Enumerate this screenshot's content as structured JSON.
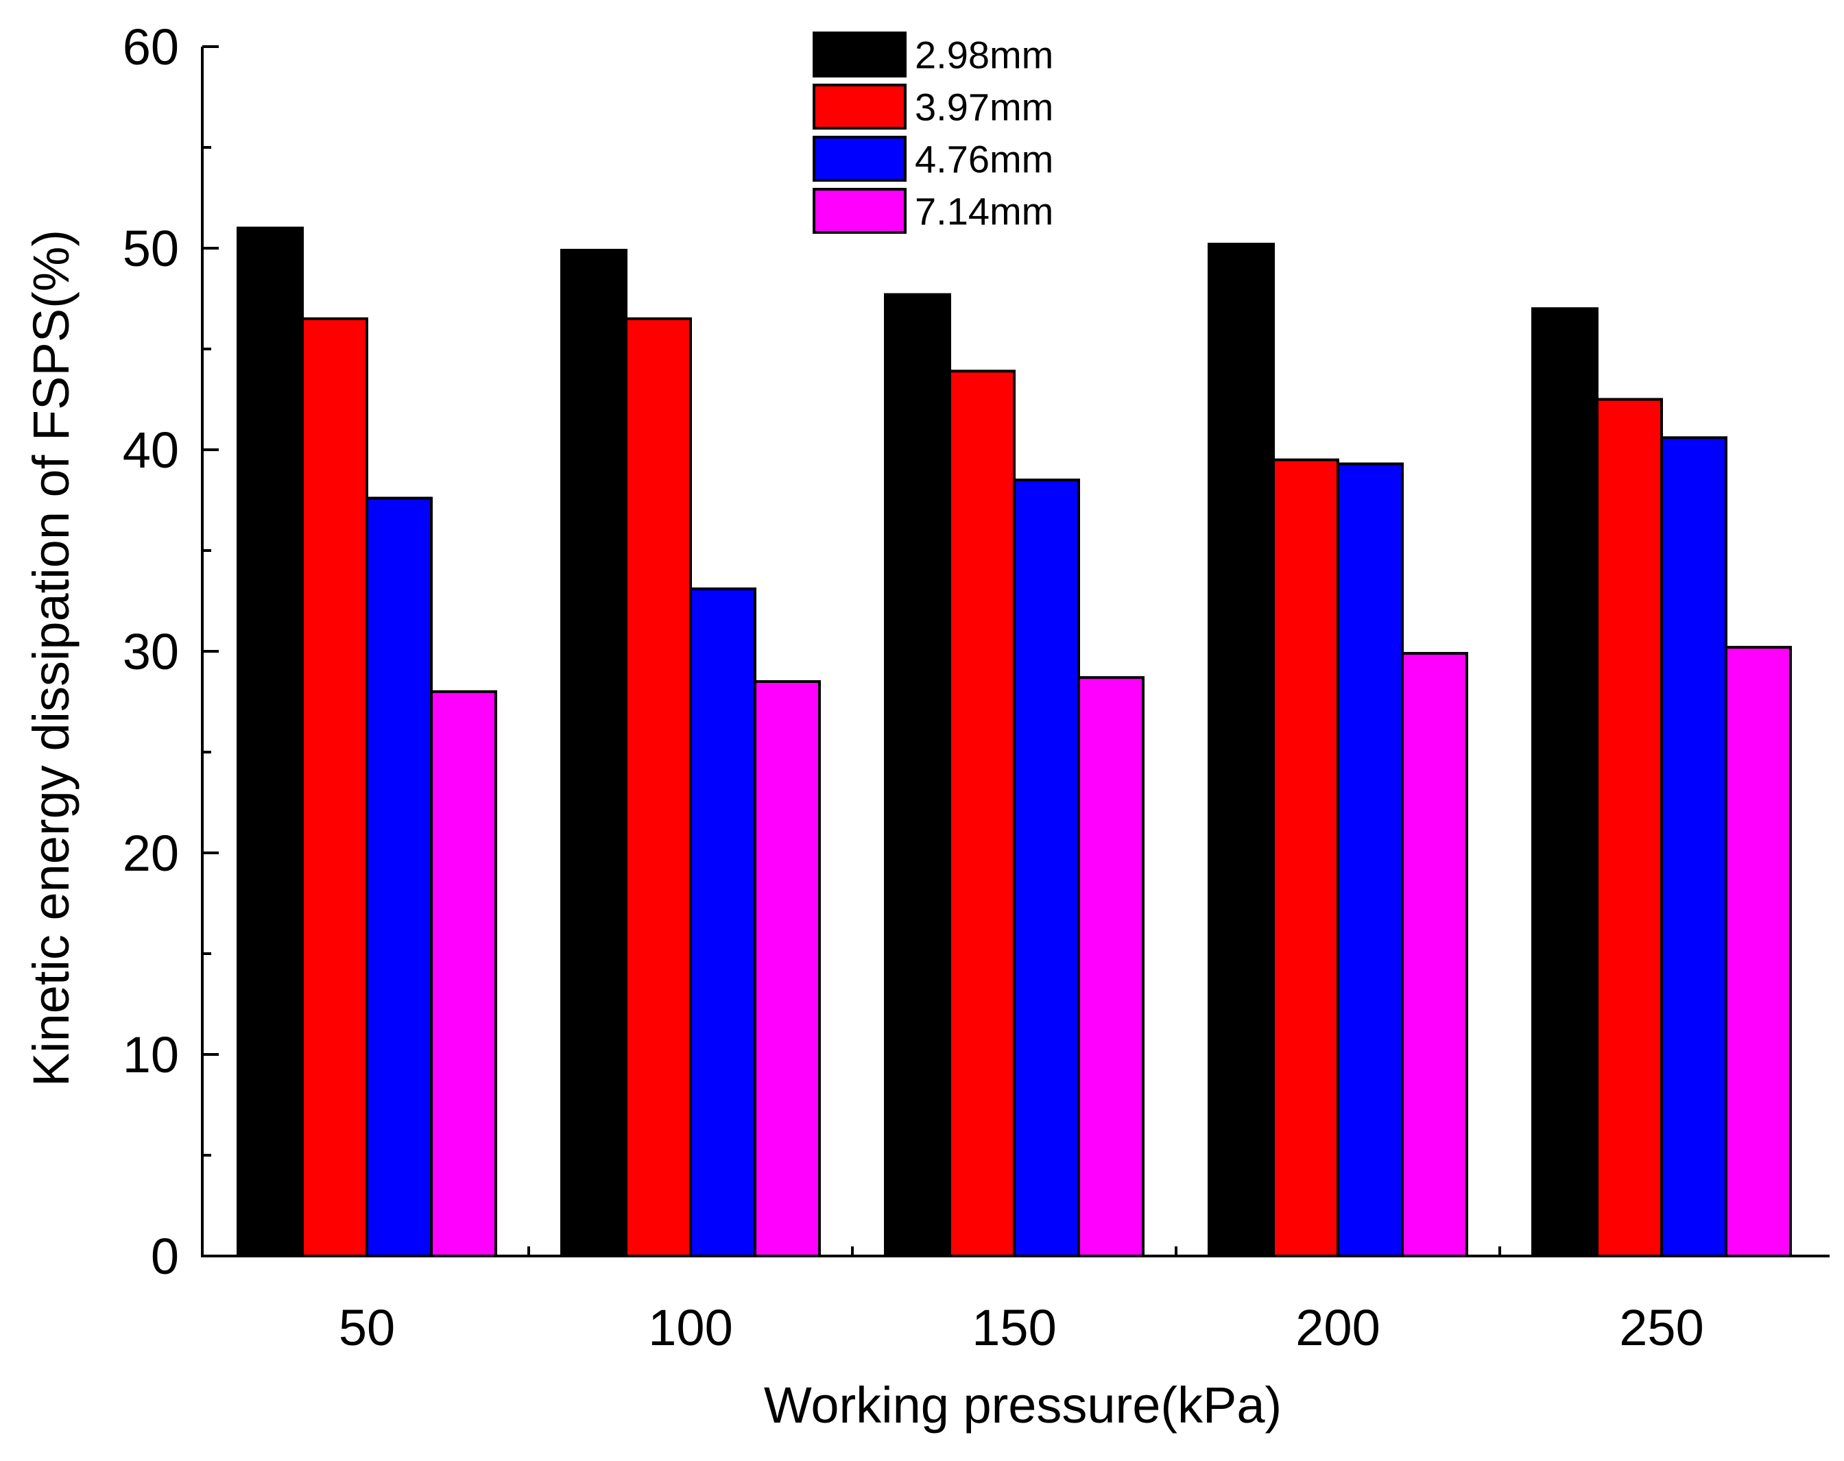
{
  "chart_data": {
    "type": "bar",
    "title": "",
    "xlabel": "Working pressure(kPa)",
    "ylabel": "Kinetic energy dissipation of FSPS(%)",
    "ylim": [
      0,
      60
    ],
    "yticks": [
      0,
      10,
      20,
      30,
      40,
      50,
      60
    ],
    "categories": [
      "50",
      "100",
      "150",
      "200",
      "250"
    ],
    "series": [
      {
        "name": "2.98mm",
        "color": "#000000",
        "values": [
          51.0,
          49.9,
          47.7,
          50.2,
          47.0
        ]
      },
      {
        "name": "3.97mm",
        "color": "#ff0000",
        "values": [
          46.5,
          46.5,
          43.9,
          39.5,
          42.5
        ]
      },
      {
        "name": "4.76mm",
        "color": "#0000ff",
        "values": [
          37.6,
          33.1,
          38.5,
          39.3,
          40.6
        ]
      },
      {
        "name": "7.14mm",
        "color": "#ff00ff",
        "values": [
          28.0,
          28.5,
          28.7,
          29.9,
          30.2
        ]
      }
    ],
    "legend_position": "top-center",
    "grid": false
  }
}
